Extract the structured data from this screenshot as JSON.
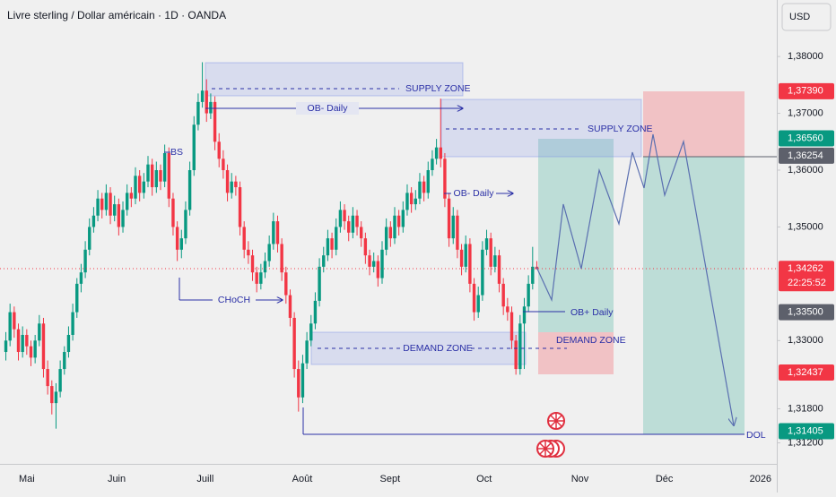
{
  "chart_data": {
    "type": "candlestick",
    "title": "Livre sterling / Dollar américain · 1D · OANDA",
    "currency": "USD",
    "up_color": "#089981",
    "down_color": "#f23645",
    "xlim": [
      -6.4,
      179.4
    ],
    "ylim": [
      1.3083,
      1.38995
    ],
    "xticks": [
      {
        "value": 0,
        "label": "Mai"
      },
      {
        "value": 21.5,
        "label": "Juin"
      },
      {
        "value": 42.7,
        "label": "Juill"
      },
      {
        "value": 65.9,
        "label": "Août"
      },
      {
        "value": 86.9,
        "label": "Sept"
      },
      {
        "value": 109.4,
        "label": "Oct"
      },
      {
        "value": 132.3,
        "label": "Nov"
      },
      {
        "value": 152.5,
        "label": "Déc"
      },
      {
        "value": 175.5,
        "label": "2026"
      }
    ],
    "yticks": [
      {
        "value": 1.38,
        "label": "1,38000"
      },
      {
        "value": 1.37,
        "label": "1,37000"
      },
      {
        "value": 1.36,
        "label": "1,36000"
      },
      {
        "value": 1.35,
        "label": "1,35000"
      },
      {
        "value": 1.33,
        "label": "1,33000"
      },
      {
        "value": 1.318,
        "label": "1,31800"
      },
      {
        "value": 1.312,
        "label": "1,31200"
      }
    ],
    "price_labels": [
      {
        "value": 1.3739,
        "label": "1,37390",
        "color": "#f23645"
      },
      {
        "value": 1.3656,
        "label": "1,36560",
        "color": "#089981"
      },
      {
        "value": 1.36254,
        "label": "1,36254",
        "color": "#5d606b"
      },
      {
        "value": 1.34262,
        "label": "1,34262",
        "color": "#f23645",
        "countdown": "22:25:52"
      },
      {
        "value": 1.335,
        "label": "1,33500",
        "color": "#5d606b"
      },
      {
        "value": 1.32437,
        "label": "1,32437",
        "color": "#f23645"
      },
      {
        "value": 1.31405,
        "label": "1,31405",
        "color": "#089981"
      }
    ],
    "annotations": [
      "SUPPLY ZONE",
      "OB- Daily",
      "SUPPLY ZONE",
      "OB- Daily",
      "BS",
      "CHoCH",
      "OB+ Daily",
      "DEMAND ZONE",
      "DEMAND ZONE",
      "DOL"
    ],
    "x": [
      -5,
      -4,
      -3,
      -2,
      -1,
      0,
      1,
      2,
      3,
      4,
      5,
      6,
      7,
      8,
      9,
      10,
      11,
      12,
      13,
      14,
      15,
      16,
      17,
      18,
      19,
      20,
      21,
      22,
      23,
      24,
      25,
      26,
      27,
      28,
      29,
      30,
      31,
      32,
      33,
      34,
      35,
      36,
      37,
      38,
      39,
      40,
      41,
      42,
      43,
      44,
      45,
      46,
      47,
      48,
      49,
      50,
      51,
      52,
      53,
      54,
      55,
      56,
      57,
      58,
      59,
      60,
      61,
      62,
      63,
      64,
      65,
      66,
      67,
      68,
      69,
      70,
      71,
      72,
      73,
      74,
      75,
      76,
      77,
      78,
      79,
      80,
      81,
      82,
      83,
      84,
      85,
      86,
      87,
      88,
      89,
      90,
      91,
      92,
      93,
      94,
      95,
      96,
      97,
      98,
      99,
      100,
      101,
      102,
      103,
      104,
      105,
      106,
      107,
      108,
      109,
      110,
      111,
      112,
      113,
      114,
      115,
      116,
      117,
      118,
      119,
      120,
      121,
      122
    ],
    "open": [
      1.328,
      1.33,
      1.335,
      1.332,
      1.328,
      1.331,
      1.329,
      1.327,
      1.33,
      1.333,
      1.325,
      1.322,
      1.319,
      1.321,
      1.325,
      1.328,
      1.331,
      1.335,
      1.34,
      1.342,
      1.346,
      1.35,
      1.352,
      1.355,
      1.353,
      1.356,
      1.352,
      1.354,
      1.35,
      1.353,
      1.356,
      1.355,
      1.359,
      1.356,
      1.358,
      1.361,
      1.357,
      1.36,
      1.358,
      1.363,
      1.355,
      1.35,
      1.346,
      1.348,
      1.353,
      1.36,
      1.368,
      1.372,
      1.374,
      1.37,
      1.372,
      1.365,
      1.362,
      1.36,
      1.356,
      1.358,
      1.357,
      1.35,
      1.346,
      1.345,
      1.342,
      1.34,
      1.342,
      1.344,
      1.347,
      1.351,
      1.347,
      1.342,
      1.338,
      1.334,
      1.325,
      1.32,
      1.326,
      1.33,
      1.333,
      1.337,
      1.343,
      1.345,
      1.348,
      1.346,
      1.35,
      1.353,
      1.351,
      1.349,
      1.352,
      1.35,
      1.348,
      1.345,
      1.343,
      1.344,
      1.341,
      1.346,
      1.35,
      1.348,
      1.352,
      1.35,
      1.353,
      1.356,
      1.354,
      1.355,
      1.358,
      1.356,
      1.36,
      1.362,
      1.364,
      1.362,
      1.355,
      1.348,
      1.352,
      1.346,
      1.343,
      1.347,
      1.34,
      1.335,
      1.338,
      1.346,
      1.348,
      1.343,
      1.345,
      1.34,
      1.336,
      1.335,
      1.33,
      1.325,
      1.333,
      1.336,
      1.34,
      1.343
    ],
    "high": [
      1.3315,
      1.3365,
      1.336,
      1.333,
      1.3325,
      1.332,
      1.33,
      1.331,
      1.3345,
      1.334,
      1.3265,
      1.323,
      1.3225,
      1.3265,
      1.329,
      1.3325,
      1.3365,
      1.341,
      1.3435,
      1.3475,
      1.3515,
      1.3535,
      1.3565,
      1.356,
      1.3575,
      1.357,
      1.3555,
      1.355,
      1.3545,
      1.3575,
      1.357,
      1.3605,
      1.36,
      1.3595,
      1.3625,
      1.362,
      1.3615,
      1.361,
      1.3645,
      1.364,
      1.356,
      1.351,
      1.3495,
      1.3545,
      1.3615,
      1.3695,
      1.3735,
      1.379,
      1.376,
      1.3735,
      1.373,
      1.3665,
      1.3635,
      1.361,
      1.3595,
      1.359,
      1.358,
      1.351,
      1.3475,
      1.346,
      1.343,
      1.3435,
      1.3455,
      1.3485,
      1.3525,
      1.352,
      1.348,
      1.343,
      1.339,
      1.335,
      1.3265,
      1.3275,
      1.3315,
      1.3345,
      1.3385,
      1.3445,
      1.3465,
      1.3495,
      1.349,
      1.3515,
      1.3545,
      1.354,
      1.352,
      1.3535,
      1.353,
      1.351,
      1.349,
      1.346,
      1.3455,
      1.345,
      1.3475,
      1.3515,
      1.351,
      1.3535,
      1.353,
      1.3545,
      1.3575,
      1.357,
      1.3565,
      1.3595,
      1.359,
      1.3615,
      1.3635,
      1.3655,
      1.3726,
      1.363,
      1.356,
      1.3535,
      1.353,
      1.347,
      1.3485,
      1.348,
      1.341,
      1.3395,
      1.3475,
      1.3495,
      1.349,
      1.3465,
      1.346,
      1.341,
      1.3375,
      1.336,
      1.331,
      1.3345,
      1.3375,
      1.3415,
      1.3465,
      1.344
    ],
    "low": [
      1.3265,
      1.329,
      1.3305,
      1.3265,
      1.327,
      1.3275,
      1.3255,
      1.326,
      1.329,
      1.3235,
      1.3205,
      1.317,
      1.3145,
      1.32,
      1.324,
      1.327,
      1.33,
      1.334,
      1.3385,
      1.341,
      1.345,
      1.349,
      1.351,
      1.3515,
      1.352,
      1.3505,
      1.351,
      1.3485,
      1.349,
      1.352,
      1.3535,
      1.354,
      1.3545,
      1.355,
      1.357,
      1.3555,
      1.356,
      1.3565,
      1.357,
      1.3535,
      1.3485,
      1.344,
      1.3445,
      1.347,
      1.352,
      1.359,
      1.367,
      1.371,
      1.3685,
      1.369,
      1.3635,
      1.3605,
      1.3585,
      1.3545,
      1.355,
      1.3555,
      1.3485,
      1.3445,
      1.3435,
      1.3405,
      1.3385,
      1.339,
      1.341,
      1.343,
      1.346,
      1.3455,
      1.3405,
      1.3365,
      1.3325,
      1.3235,
      1.3175,
      1.319,
      1.325,
      1.329,
      1.332,
      1.336,
      1.342,
      1.344,
      1.3445,
      1.345,
      1.349,
      1.3495,
      1.3475,
      1.348,
      1.3485,
      1.3465,
      1.3435,
      1.3415,
      1.342,
      1.3395,
      1.34,
      1.345,
      1.3465,
      1.347,
      1.3485,
      1.349,
      1.352,
      1.3525,
      1.353,
      1.354,
      1.3545,
      1.355,
      1.359,
      1.361,
      1.3605,
      1.3535,
      1.3465,
      1.347,
      1.3445,
      1.3415,
      1.342,
      1.3385,
      1.3335,
      1.334,
      1.337,
      1.345,
      1.3415,
      1.342,
      1.3385,
      1.3345,
      1.3335,
      1.3285,
      1.324,
      1.324,
      1.325,
      1.335,
      1.339,
      1.3425
    ],
    "close": [
      1.33,
      1.335,
      1.332,
      1.328,
      1.331,
      1.329,
      1.327,
      1.33,
      1.333,
      1.325,
      1.322,
      1.319,
      1.321,
      1.325,
      1.328,
      1.331,
      1.335,
      1.34,
      1.342,
      1.346,
      1.35,
      1.352,
      1.355,
      1.353,
      1.356,
      1.352,
      1.354,
      1.35,
      1.353,
      1.356,
      1.355,
      1.359,
      1.356,
      1.358,
      1.361,
      1.357,
      1.36,
      1.358,
      1.363,
      1.355,
      1.35,
      1.346,
      1.348,
      1.353,
      1.36,
      1.368,
      1.372,
      1.374,
      1.37,
      1.372,
      1.365,
      1.362,
      1.36,
      1.356,
      1.358,
      1.357,
      1.35,
      1.346,
      1.345,
      1.342,
      1.34,
      1.342,
      1.344,
      1.347,
      1.351,
      1.347,
      1.342,
      1.338,
      1.334,
      1.325,
      1.32,
      1.326,
      1.33,
      1.333,
      1.337,
      1.343,
      1.345,
      1.348,
      1.346,
      1.35,
      1.353,
      1.351,
      1.349,
      1.352,
      1.35,
      1.348,
      1.345,
      1.343,
      1.344,
      1.341,
      1.346,
      1.35,
      1.348,
      1.352,
      1.35,
      1.353,
      1.356,
      1.354,
      1.355,
      1.358,
      1.356,
      1.36,
      1.362,
      1.364,
      1.362,
      1.355,
      1.348,
      1.352,
      1.346,
      1.343,
      1.347,
      1.34,
      1.335,
      1.338,
      1.346,
      1.348,
      1.343,
      1.345,
      1.34,
      1.336,
      1.335,
      1.33,
      1.325,
      1.333,
      1.336,
      1.34,
      1.343,
      1.34262
    ]
  }
}
